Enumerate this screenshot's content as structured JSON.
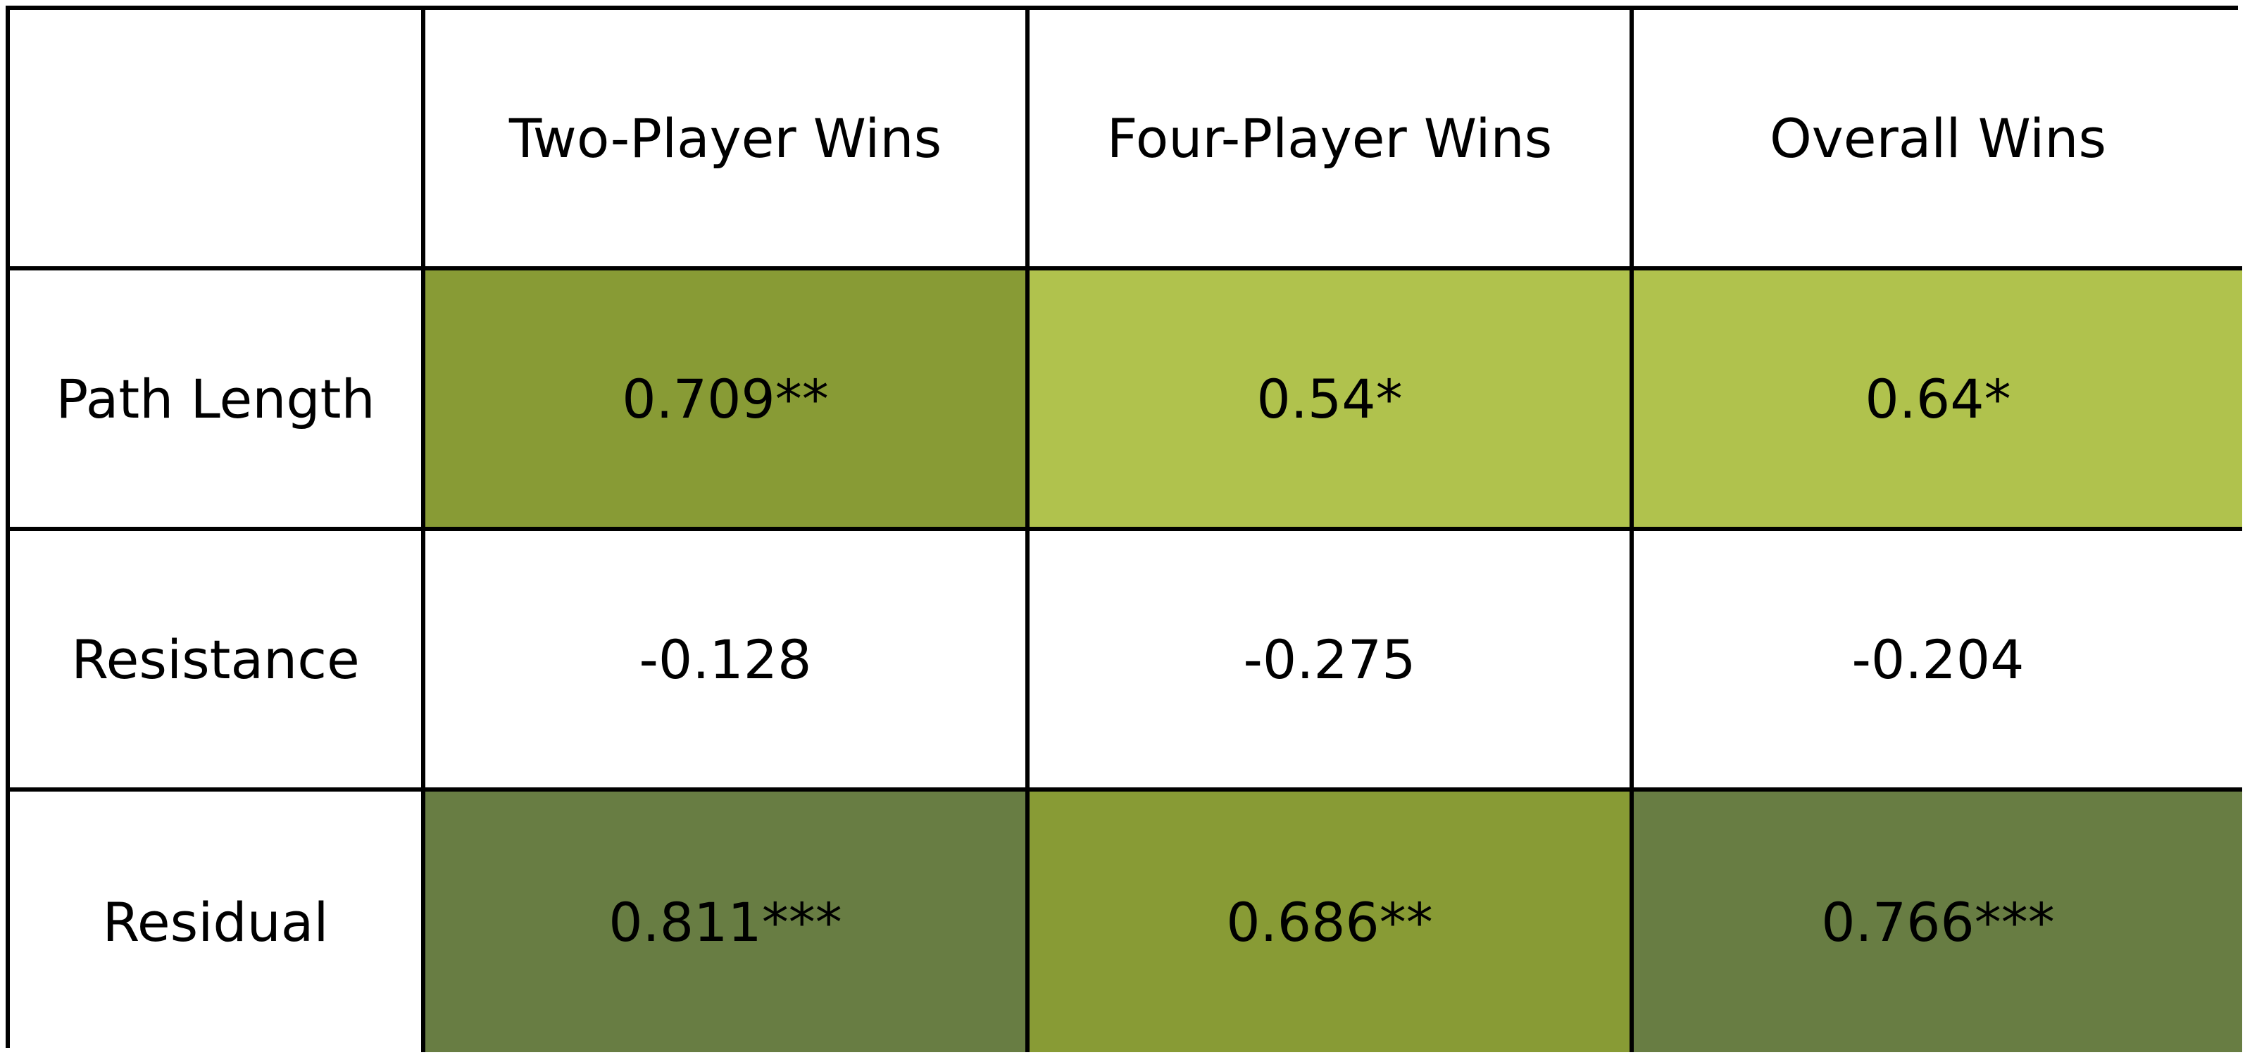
{
  "chart_data": {
    "type": "heatmap",
    "columns": [
      "",
      "Two-Player Wins",
      "Four-Player Wins",
      "Overall Wins"
    ],
    "rows": [
      {
        "label": "Path Length",
        "cells": [
          {
            "text": "0.709**",
            "value": 0.709,
            "color": "#889b35"
          },
          {
            "text": "0.54*",
            "value": 0.54,
            "color": "#b0c24d"
          },
          {
            "text": "0.64*",
            "value": 0.64,
            "color": "#b0c24d"
          }
        ]
      },
      {
        "label": "Resistance",
        "cells": [
          {
            "text": "-0.128",
            "value": -0.128,
            "color": "#ffffff"
          },
          {
            "text": "-0.275",
            "value": -0.275,
            "color": "#ffffff"
          },
          {
            "text": "-0.204",
            "value": -0.204,
            "color": "#ffffff"
          }
        ]
      },
      {
        "label": "Residual",
        "cells": [
          {
            "text": "0.811***",
            "value": 0.811,
            "color": "#687d43"
          },
          {
            "text": "0.686**",
            "value": 0.686,
            "color": "#889b35"
          },
          {
            "text": "0.766***",
            "value": 0.766,
            "color": "#687d43"
          }
        ]
      }
    ]
  }
}
